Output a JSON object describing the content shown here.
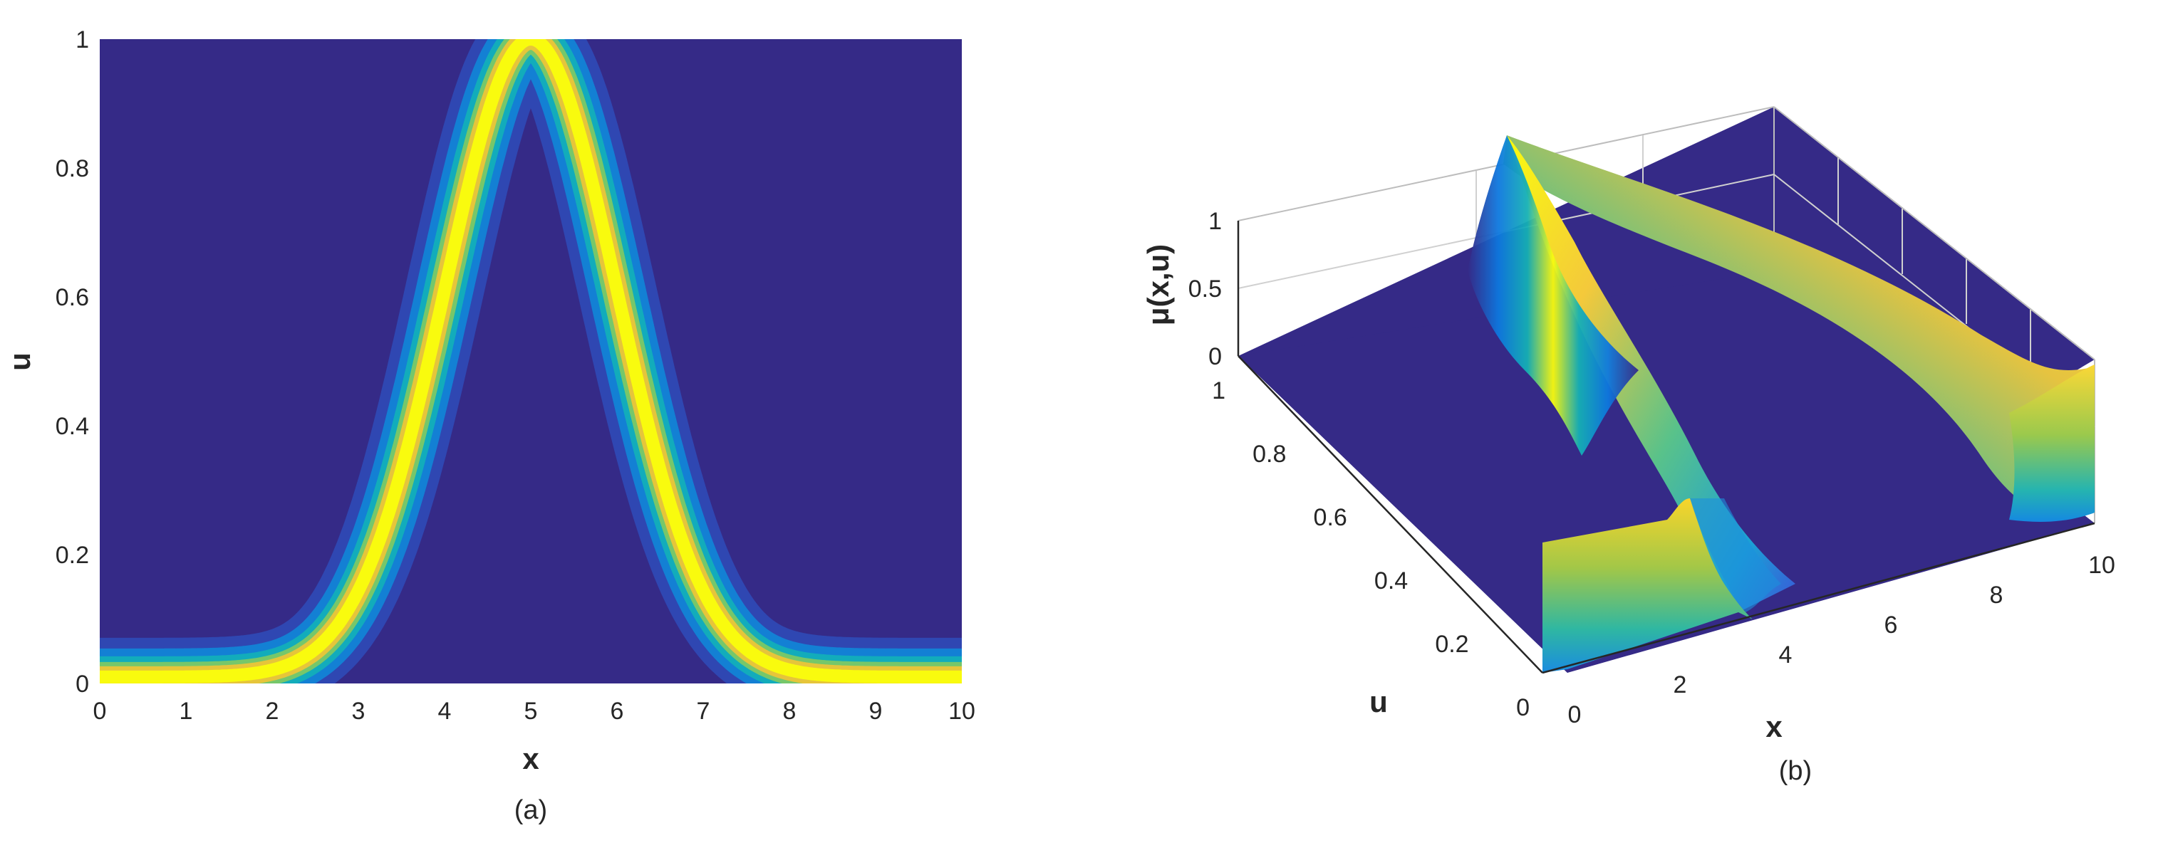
{
  "chart_data": [
    {
      "type": "heatmap",
      "panel_label": "(a)",
      "xlabel": "x",
      "ylabel": "u",
      "xlim": [
        0,
        10
      ],
      "ylim": [
        0,
        1
      ],
      "xticks": [
        "0",
        "1",
        "2",
        "3",
        "4",
        "5",
        "6",
        "7",
        "8",
        "9",
        "10"
      ],
      "yticks": [
        "0",
        "0.2",
        "0.4",
        "0.6",
        "0.8",
        "1"
      ],
      "ridge": {
        "function": "gaussian",
        "center_x": 5,
        "sigma_x": 1.0,
        "peak_u": 1,
        "baseline_u": 0.01
      },
      "colors": {
        "background": "#352a87",
        "ridge": "#f9fb0e",
        "edge": "#0d9cd9"
      }
    },
    {
      "type": "surface",
      "panel_label": "(b)",
      "xlabel": "x",
      "ylabel": "u",
      "zlabel": "μ(x,u)",
      "xlim": [
        0,
        10
      ],
      "ylim": [
        0,
        1
      ],
      "zlim": [
        0,
        1
      ],
      "xticks": [
        "0",
        "2",
        "4",
        "6",
        "8",
        "10"
      ],
      "yticks": [
        "0",
        "0.2",
        "0.4",
        "0.6",
        "0.8",
        "1"
      ],
      "zticks": [
        "0",
        "0.5",
        "1"
      ],
      "colors": {
        "floor": "#352a87",
        "ridge_top": "#f9fb0e",
        "ridge_mid": "#33b7a0",
        "ridge_low": "#0d78df"
      }
    }
  ]
}
